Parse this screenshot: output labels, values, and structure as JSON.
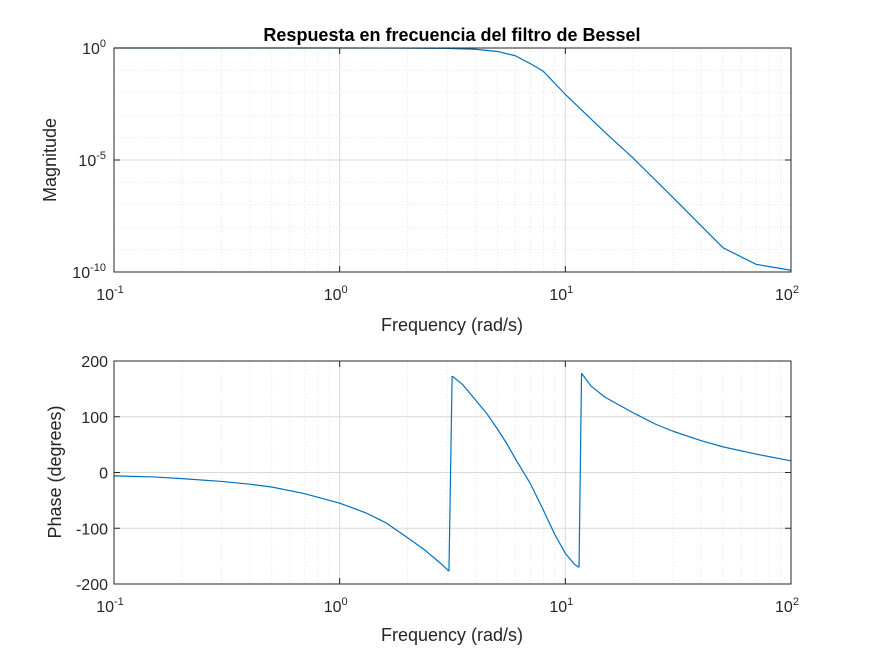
{
  "chart_data": [
    {
      "type": "line",
      "title": "Respuesta en frecuencia del filtro de Bessel",
      "xlabel": "Frequency (rad/s)",
      "ylabel": "Magnitude",
      "xscale": "log",
      "yscale": "log",
      "xlim": [
        0.1,
        100
      ],
      "ylim": [
        1e-10,
        1
      ],
      "grid": true,
      "minor_grid": true,
      "line_color": "#0072BD",
      "x_ticks": [
        {
          "base": "10",
          "exp": "-1",
          "value": 0.1
        },
        {
          "base": "10",
          "exp": "0",
          "value": 1
        },
        {
          "base": "10",
          "exp": "1",
          "value": 10
        },
        {
          "base": "10",
          "exp": "2",
          "value": 100
        }
      ],
      "y_ticks": [
        {
          "base": "10",
          "exp": "0",
          "value": 1
        },
        {
          "base": "10",
          "exp": "-5",
          "value": 1e-05
        },
        {
          "base": "10",
          "exp": "-10",
          "value": 1e-10
        }
      ],
      "x": [
        0.1,
        0.5,
        1,
        2,
        3,
        4,
        5,
        6,
        7,
        8,
        10,
        15,
        20,
        30,
        50,
        70,
        100
      ],
      "y": [
        1,
        1,
        0.999,
        0.99,
        0.96,
        0.88,
        0.7,
        0.45,
        0.2,
        0.09,
        0.0085,
        0.00017,
        1.2e-05,
        2.1e-07,
        1.2e-09,
        2.2e-10,
        1.2e-10
      ]
    },
    {
      "type": "line",
      "title": "",
      "xlabel": "Frequency (rad/s)",
      "ylabel": "Phase (degrees)",
      "xscale": "log",
      "yscale": "linear",
      "xlim": [
        0.1,
        100
      ],
      "ylim": [
        -200,
        200
      ],
      "grid": true,
      "minor_grid": true,
      "line_color": "#0072BD",
      "x_ticks": [
        {
          "base": "10",
          "exp": "-1",
          "value": 0.1
        },
        {
          "base": "10",
          "exp": "0",
          "value": 1
        },
        {
          "base": "10",
          "exp": "1",
          "value": 10
        },
        {
          "base": "10",
          "exp": "2",
          "value": 100
        }
      ],
      "y_ticks": [
        {
          "label": "200",
          "value": 200
        },
        {
          "label": "100",
          "value": 100
        },
        {
          "label": "0",
          "value": 0
        },
        {
          "label": "-100",
          "value": -100
        },
        {
          "label": "-200",
          "value": -200
        }
      ],
      "segments": [
        {
          "x": [
            0.1,
            0.15,
            0.2,
            0.3,
            0.4,
            0.5,
            0.7,
            1.0,
            1.3,
            1.6,
            2.0,
            2.4,
            2.8,
            3.05
          ],
          "y": [
            -6,
            -8,
            -11,
            -16,
            -21,
            -26,
            -38,
            -55,
            -72,
            -90,
            -117,
            -140,
            -163,
            -177
          ]
        },
        {
          "x": [
            3.05,
            3.15
          ],
          "y": [
            -177,
            173
          ]
        },
        {
          "x": [
            3.15,
            3.5,
            4,
            4.5,
            5,
            5.5,
            6,
            7,
            8,
            9,
            10,
            11,
            11.5
          ],
          "y": [
            173,
            158,
            130,
            105,
            78,
            52,
            25,
            -20,
            -68,
            -112,
            -145,
            -165,
            -170
          ]
        },
        {
          "x": [
            11.5,
            11.8
          ],
          "y": [
            -170,
            178
          ]
        },
        {
          "x": [
            11.8,
            13,
            15,
            20,
            25,
            30,
            40,
            50,
            70,
            100
          ],
          "y": [
            178,
            155,
            135,
            107,
            87,
            74,
            57,
            46,
            33,
            21
          ]
        }
      ]
    }
  ]
}
